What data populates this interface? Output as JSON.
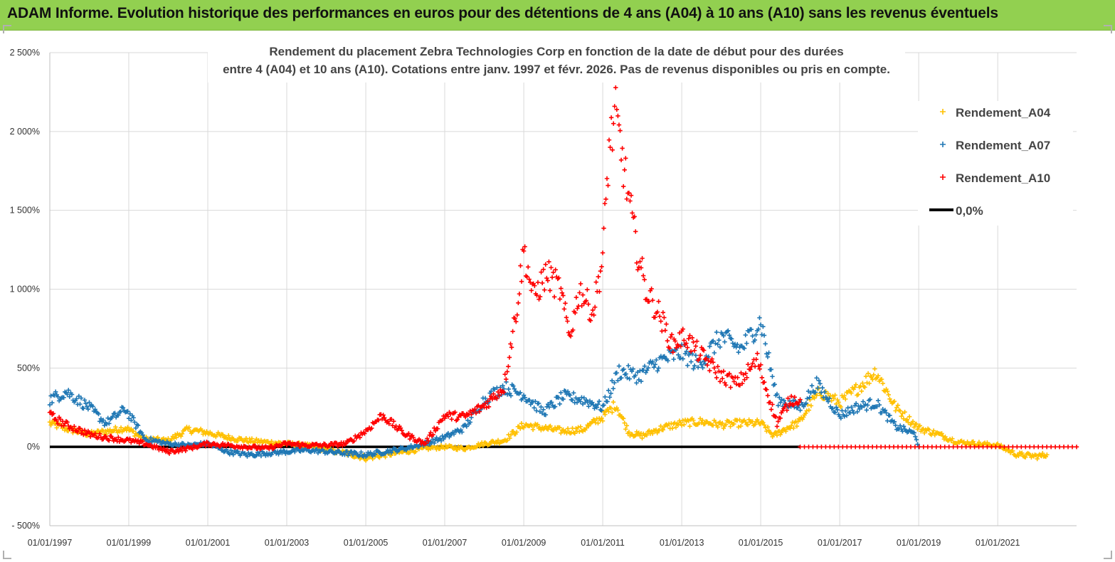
{
  "header": {
    "title": "ADAM Informe. Evolution historique des performances en euros pour des détentions de 4 ans (A04) à 10 ans (A10) sans les revenus éventuels"
  },
  "colors": {
    "banner": "#92d050",
    "A04": "#ffc000",
    "A07": "#1f77b4",
    "A10": "#ff0000",
    "zero": "#000000"
  },
  "chart_data": {
    "type": "scatter",
    "title_lines": [
      "Rendement du placement Zebra Technologies Corp en fonction de la date de début pour des durées",
      "entre 4 (A04) et 10 ans (A10). Cotations entre janv. 1997 et févr. 2026. Pas de revenus disponibles ou pris en compte."
    ],
    "x_range": [
      "1997-01-01",
      "2022-12-31"
    ],
    "x_tick_labels": [
      "01/01/1997",
      "01/01/1999",
      "01/01/2001",
      "01/01/2003",
      "01/01/2005",
      "01/01/2007",
      "01/01/2009",
      "01/01/2011",
      "01/01/2013",
      "01/01/2015",
      "01/01/2017",
      "01/01/2019",
      "01/01/2021"
    ],
    "y_range": [
      -500,
      2500
    ],
    "y_tick_values": [
      -500,
      0,
      500,
      1000,
      1500,
      2000,
      2500
    ],
    "y_tick_labels": [
      "- 500%",
      "0%",
      "500%",
      "1 000%",
      "1 500%",
      "2 000%",
      "2 500%"
    ],
    "grid": true,
    "legend_position": "right",
    "legend": [
      "Rendement_A04",
      "Rendement_A07",
      "Rendement_A10",
      "0,0%"
    ],
    "series": [
      {
        "name": "Rendement_A04",
        "marker": "+",
        "x": [
          "1997-01-01",
          "1997-07-01",
          "1998-01-01",
          "1998-07-01",
          "1998-12-01",
          "1999-06-01",
          "2000-01-01",
          "2000-07-01",
          "2001-01-01",
          "2001-07-01",
          "2002-01-01",
          "2002-07-01",
          "2003-01-01",
          "2003-07-01",
          "2004-01-01",
          "2004-07-01",
          "2005-01-01",
          "2005-07-01",
          "2006-01-01",
          "2006-07-01",
          "2007-01-01",
          "2007-07-01",
          "2008-01-01",
          "2008-07-01",
          "2009-01-01",
          "2009-07-01",
          "2010-01-01",
          "2010-07-01",
          "2011-01-01",
          "2011-05-01",
          "2011-09-01",
          "2012-01-01",
          "2012-07-01",
          "2013-01-01",
          "2013-07-01",
          "2014-01-01",
          "2014-07-01",
          "2015-01-01",
          "2015-05-01",
          "2015-09-01",
          "2016-01-01",
          "2016-04-01",
          "2016-07-01",
          "2017-01-01",
          "2017-07-01",
          "2017-12-01",
          "2018-06-01",
          "2019-01-01",
          "2019-07-01",
          "2020-01-01",
          "2020-07-01",
          "2021-01-01",
          "2021-07-01",
          "2022-01-01",
          "2022-04-01"
        ],
        "y": [
          150,
          110,
          80,
          100,
          120,
          50,
          40,
          110,
          90,
          60,
          40,
          30,
          20,
          10,
          -20,
          -40,
          -70,
          -50,
          -30,
          -10,
          0,
          -10,
          20,
          40,
          140,
          120,
          100,
          110,
          190,
          270,
          90,
          70,
          120,
          150,
          160,
          140,
          150,
          150,
          70,
          120,
          160,
          270,
          350,
          280,
          380,
          480,
          250,
          120,
          80,
          30,
          20,
          10,
          -50,
          -60,
          -50
        ]
      },
      {
        "name": "Rendement_A07",
        "marker": "+",
        "x": [
          "1997-01-01",
          "1997-06-01",
          "1998-01-01",
          "1998-06-01",
          "1998-12-01",
          "1999-06-01",
          "2000-01-01",
          "2000-07-01",
          "2001-01-01",
          "2001-07-01",
          "2002-01-01",
          "2002-07-01",
          "2003-01-01",
          "2003-07-01",
          "2004-01-01",
          "2004-07-01",
          "2005-01-01",
          "2005-07-01",
          "2006-01-01",
          "2006-07-01",
          "2007-01-01",
          "2007-07-01",
          "2008-01-01",
          "2008-07-01",
          "2009-01-01",
          "2009-07-01",
          "2010-01-01",
          "2010-07-01",
          "2011-01-01",
          "2011-06-01",
          "2011-12-01",
          "2012-06-01",
          "2013-01-01",
          "2013-06-01",
          "2014-01-01",
          "2014-07-01",
          "2015-01-01",
          "2015-06-01",
          "2016-01-01",
          "2016-06-01",
          "2017-01-01",
          "2017-06-01",
          "2017-12-01",
          "2018-06-01",
          "2018-12-01",
          "2019-01-01"
        ],
        "y": [
          300,
          350,
          250,
          150,
          240,
          50,
          20,
          10,
          20,
          -30,
          -50,
          -40,
          -30,
          -20,
          -30,
          -40,
          -50,
          -30,
          -10,
          20,
          60,
          120,
          300,
          380,
          330,
          220,
          320,
          300,
          250,
          480,
          450,
          540,
          600,
          520,
          700,
          620,
          800,
          300,
          250,
          400,
          200,
          250,
          280,
          130,
          80,
          0
        ]
      },
      {
        "name": "Rendement_A10",
        "marker": "+",
        "x": [
          "1997-01-01",
          "1997-06-01",
          "1998-01-01",
          "1998-06-01",
          "1999-01-01",
          "1999-06-01",
          "2000-01-01",
          "2000-07-01",
          "2001-01-01",
          "2001-07-01",
          "2002-01-01",
          "2002-07-01",
          "2003-01-01",
          "2003-07-01",
          "2004-01-01",
          "2004-07-01",
          "2005-01-01",
          "2005-06-01",
          "2006-01-01",
          "2006-07-01",
          "2007-01-01",
          "2007-07-01",
          "2008-01-01",
          "2008-07-01",
          "2008-11-01",
          "2009-01-01",
          "2009-04-01",
          "2009-08-01",
          "2009-12-01",
          "2010-03-01",
          "2010-06-01",
          "2010-10-01",
          "2011-01-01",
          "2011-03-01",
          "2011-05-01",
          "2011-08-01",
          "2011-11-01",
          "2012-02-01",
          "2012-06-01",
          "2012-10-01",
          "2013-02-01",
          "2013-06-01",
          "2014-01-01",
          "2014-06-01",
          "2014-12-01",
          "2015-06-01",
          "2015-10-01",
          "2016-01-01"
        ],
        "y": [
          200,
          140,
          80,
          60,
          40,
          20,
          -30,
          -10,
          20,
          10,
          0,
          -10,
          20,
          10,
          10,
          20,
          100,
          200,
          80,
          20,
          200,
          190,
          260,
          380,
          900,
          1250,
          950,
          1100,
          1000,
          700,
          1000,
          850,
          1200,
          1900,
          2100,
          1700,
          1300,
          1000,
          850,
          650,
          700,
          600,
          450,
          400,
          550,
          150,
          300,
          300
        ]
      },
      {
        "name": "Rendement_A10_tail",
        "marker": "+",
        "x": [
          "2016-01-01",
          "2022-12-31"
        ],
        "y": [
          0,
          0
        ]
      }
    ],
    "zero_line": {
      "x": [
        "1997-01-01",
        "2016-01-01"
      ],
      "y": [
        0,
        0
      ]
    }
  }
}
